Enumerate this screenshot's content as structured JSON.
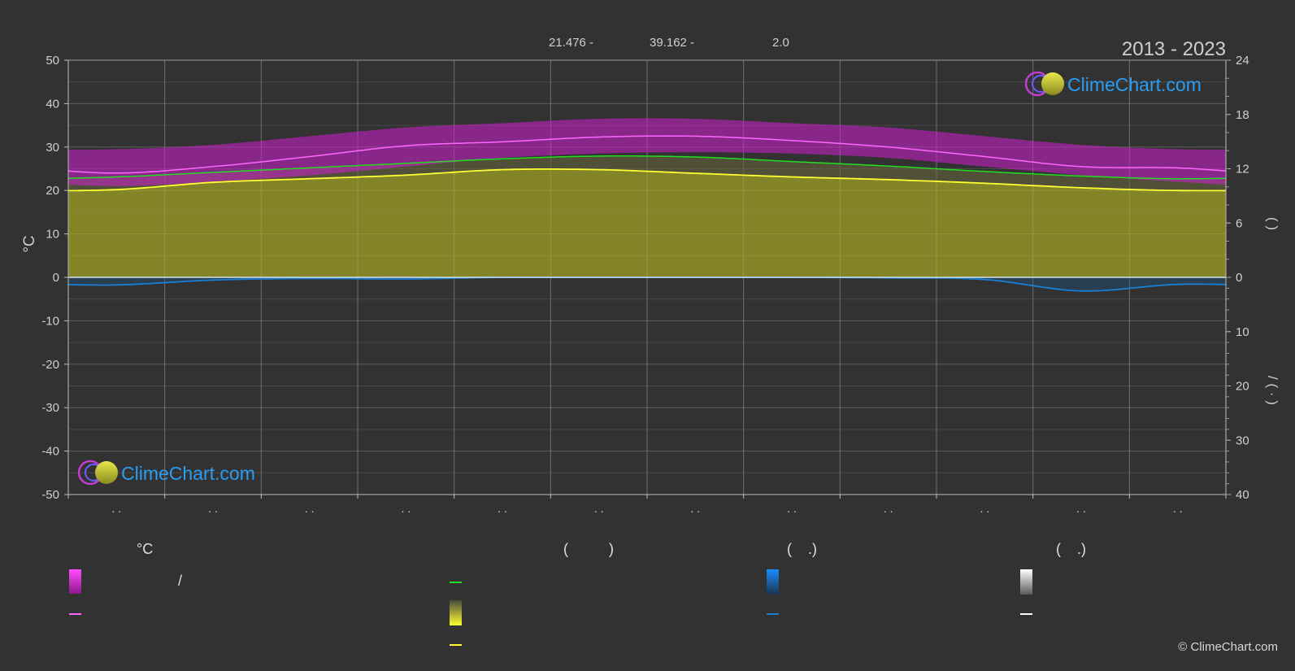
{
  "header": {
    "period": "2013 - 2023",
    "coord_lat": "21.476 -",
    "coord_lon": "39.162 -",
    "elevation": "2.0"
  },
  "brand": {
    "logo_text": "ClimeChart.com",
    "copyright": "© ClimeChart.com"
  },
  "colors": {
    "background": "#323232",
    "temp_band": "#d01fd0",
    "avg_daily_max": "#ff66ff",
    "daylight": "#22dd22",
    "sunshine_fill": "#b4b422",
    "sunshine_line": "#ffff33",
    "precip": "#1a7fd4",
    "logo_text": "#2a9df4"
  },
  "chart_data": {
    "type": "area",
    "x_tick_labels": [
      ". .",
      ". .",
      ". .",
      ". .",
      ". .",
      ". .",
      ". .",
      ". .",
      ". .",
      ". .",
      ". .",
      ". ."
    ],
    "y_left": {
      "label": "°C",
      "range": [
        -50,
        50
      ],
      "ticks": [
        50,
        40,
        30,
        20,
        10,
        0,
        -10,
        -20,
        -30,
        -40,
        -50
      ]
    },
    "y_right_top": {
      "range": [
        0,
        24
      ],
      "ticks": [
        24,
        18,
        12,
        6,
        0
      ],
      "label_glyphs": "(  )"
    },
    "y_right_bottom": {
      "range": [
        0,
        40
      ],
      "ticks": [
        0,
        10,
        20,
        30,
        40
      ],
      "label_glyphs": "/  (  ·  )"
    },
    "months_x": [
      0.5,
      1.5,
      2.5,
      3.5,
      4.5,
      5.5,
      6.5,
      7.5,
      8.5,
      9.5,
      10.5,
      11.5
    ],
    "series": [
      {
        "key": "avg_daily_max",
        "values": [
          24,
          25.5,
          27.8,
          30.3,
          31.2,
          32.3,
          32.5,
          31.5,
          30,
          27.8,
          25.5,
          25.2
        ]
      },
      {
        "key": "daylight_hours",
        "values": [
          11.1,
          11.6,
          12.1,
          12.6,
          13.1,
          13.4,
          13.3,
          12.8,
          12.3,
          11.7,
          11.2,
          10.9
        ]
      },
      {
        "key": "sunshine_hours",
        "values": [
          9.7,
          10.5,
          10.9,
          11.3,
          11.9,
          11.9,
          11.5,
          11.1,
          10.8,
          10.4,
          9.9,
          9.6
        ]
      },
      {
        "key": "precip_mm",
        "values": [
          1.4,
          0.5,
          0.2,
          0.3,
          0.0,
          0.0,
          0.0,
          0.0,
          0.1,
          0.4,
          2.5,
          1.3
        ]
      },
      {
        "key": "temp_band_low",
        "values": [
          21,
          22,
          23.5,
          25.5,
          27.5,
          28.5,
          28.8,
          28.5,
          27.5,
          25.5,
          23.5,
          22
        ]
      },
      {
        "key": "temp_band_high",
        "values": [
          29.5,
          30.5,
          32.5,
          34.5,
          35.5,
          36.5,
          36.5,
          35.5,
          34.5,
          32.5,
          30.5,
          29.5
        ]
      }
    ]
  },
  "legend": {
    "col1": {
      "header": "°C",
      "item1": "/"
    },
    "col2": {
      "header": "(          )"
    },
    "col3": {
      "header": "(    .)"
    },
    "col4": {
      "header": "(    .)"
    }
  }
}
